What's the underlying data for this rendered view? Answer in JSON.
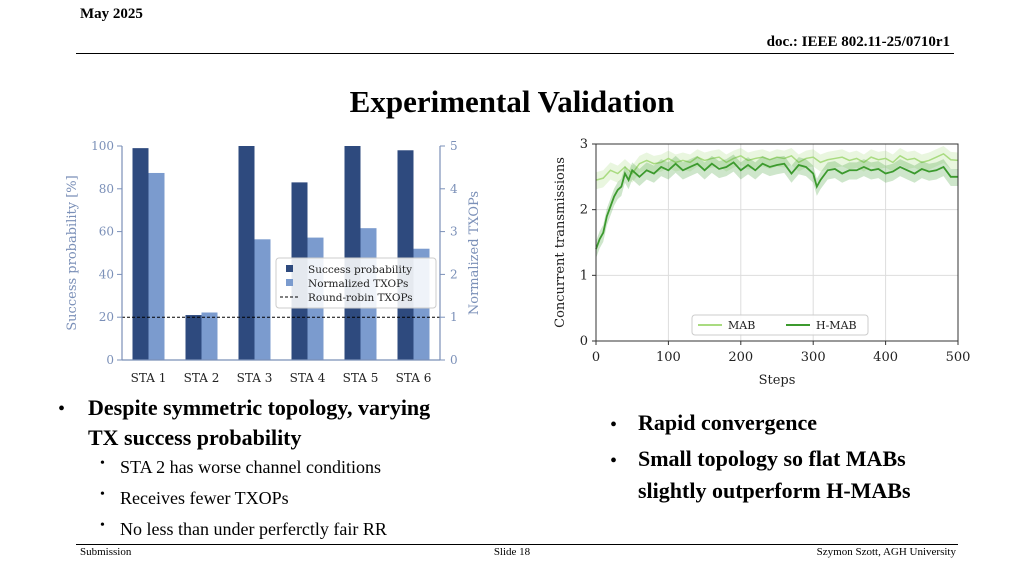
{
  "header": {
    "date": "May 2025",
    "doc": "doc.: IEEE 802.11-25/0710r1"
  },
  "slide": {
    "title": "Experimental Validation"
  },
  "footer": {
    "left": "Submission",
    "center": "Slide 18",
    "right": "Szymon Szott, AGH University"
  },
  "left_bullets": {
    "main": [
      "Despite symmetric topology, varying",
      "TX success probability"
    ],
    "sub": [
      "STA 2 has worse channel conditions",
      "Receives fewer TXOPs",
      "No less than under perferctly fair RR"
    ]
  },
  "right_bullets": [
    {
      "lines": [
        "Rapid convergence"
      ]
    },
    {
      "lines": [
        "Small topology so flat MABs",
        "slightly outperform H-MABs"
      ]
    }
  ],
  "chart_data": [
    {
      "type": "bar",
      "categories": [
        "STA 1",
        "STA 2",
        "STA 3",
        "STA 4",
        "STA 5",
        "STA 6"
      ],
      "series": [
        {
          "name": "Success probability",
          "axis": "left",
          "values": [
            99,
            21,
            100,
            83,
            100,
            98
          ],
          "color": "#2e4a7e"
        },
        {
          "name": "Normalized TXOPs",
          "axis": "right",
          "values": [
            4.37,
            1.11,
            2.82,
            2.86,
            3.08,
            2.6
          ],
          "color": "#7b9bce"
        }
      ],
      "reference_line": {
        "name": "Round-robin TXOPs",
        "axis": "right",
        "value": 1.0
      },
      "ylabel": "Success probability [%]",
      "y2label": "Normalized TXOPs",
      "ylim": [
        0,
        100
      ],
      "y2lim": [
        0,
        5
      ],
      "yticks": [
        0,
        20,
        40,
        60,
        80,
        100
      ],
      "y2ticks": [
        0,
        1,
        2,
        3,
        4,
        5
      ],
      "legend": "center-right",
      "axis_color": "#7b90b8"
    },
    {
      "type": "line",
      "xlabel": "Steps",
      "ylabel": "Concurrent transmissions",
      "xlim": [
        0,
        500
      ],
      "ylim": [
        0,
        3
      ],
      "xticks": [
        0,
        100,
        200,
        300,
        400,
        500
      ],
      "yticks": [
        0,
        1,
        2,
        3
      ],
      "grid": true,
      "legend": "bottom-right",
      "series": [
        {
          "name": "MAB",
          "color": "#a9db80",
          "x": [
            0,
            10,
            20,
            30,
            40,
            50,
            60,
            70,
            80,
            90,
            100,
            110,
            120,
            130,
            140,
            150,
            160,
            170,
            180,
            190,
            200,
            210,
            220,
            230,
            240,
            250,
            260,
            270,
            280,
            290,
            300,
            310,
            320,
            330,
            340,
            350,
            360,
            370,
            380,
            390,
            400,
            410,
            420,
            430,
            440,
            450,
            460,
            470,
            480,
            490,
            500
          ],
          "y": [
            2.45,
            2.48,
            2.6,
            2.55,
            2.65,
            2.55,
            2.7,
            2.75,
            2.7,
            2.72,
            2.78,
            2.72,
            2.75,
            2.72,
            2.8,
            2.75,
            2.78,
            2.8,
            2.72,
            2.78,
            2.82,
            2.75,
            2.78,
            2.8,
            2.76,
            2.8,
            2.78,
            2.82,
            2.72,
            2.78,
            2.8,
            2.72,
            2.76,
            2.78,
            2.8,
            2.75,
            2.78,
            2.72,
            2.8,
            2.76,
            2.78,
            2.72,
            2.82,
            2.76,
            2.78,
            2.72,
            2.75,
            2.8,
            2.85,
            2.76,
            2.75
          ]
        },
        {
          "name": "H-MAB",
          "color": "#3c9a2e",
          "x": [
            0,
            5,
            10,
            15,
            20,
            25,
            30,
            35,
            40,
            45,
            50,
            60,
            70,
            80,
            90,
            100,
            110,
            120,
            130,
            140,
            150,
            160,
            170,
            180,
            190,
            200,
            210,
            220,
            230,
            240,
            250,
            260,
            270,
            280,
            290,
            300,
            305,
            310,
            320,
            330,
            340,
            350,
            360,
            370,
            380,
            390,
            400,
            410,
            420,
            430,
            440,
            450,
            460,
            470,
            480,
            490,
            500
          ],
          "y": [
            1.4,
            1.55,
            1.65,
            1.9,
            2.05,
            2.2,
            2.3,
            2.35,
            2.55,
            2.45,
            2.6,
            2.5,
            2.6,
            2.55,
            2.65,
            2.6,
            2.7,
            2.6,
            2.65,
            2.7,
            2.6,
            2.7,
            2.62,
            2.65,
            2.72,
            2.6,
            2.68,
            2.6,
            2.7,
            2.65,
            2.68,
            2.7,
            2.55,
            2.68,
            2.65,
            2.55,
            2.35,
            2.45,
            2.6,
            2.62,
            2.55,
            2.6,
            2.6,
            2.65,
            2.6,
            2.62,
            2.55,
            2.58,
            2.65,
            2.6,
            2.55,
            2.62,
            2.58,
            2.6,
            2.65,
            2.5,
            2.5
          ]
        }
      ]
    }
  ]
}
